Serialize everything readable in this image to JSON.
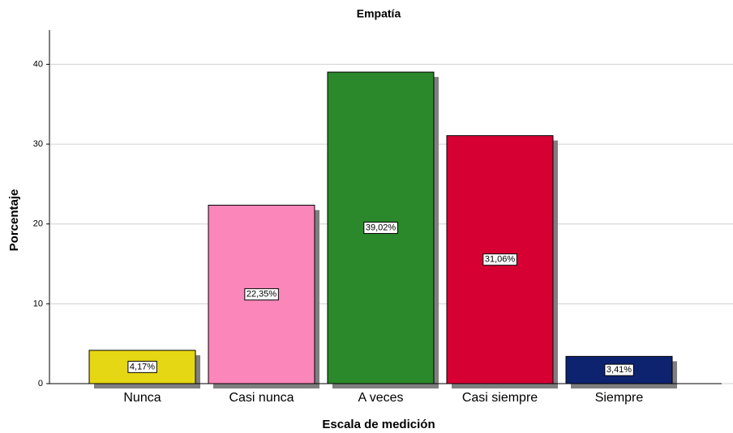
{
  "chart_data": {
    "type": "bar",
    "title": "Empatía",
    "x_label": "Escala de medición",
    "y_label": "Porcentaje",
    "categories": [
      "Nunca",
      "Casi nunca",
      "A veces",
      "Casi siempre",
      "Siempre"
    ],
    "values": [
      4.17,
      22.35,
      39.02,
      31.06,
      3.41
    ],
    "value_labels": [
      "4,17%",
      "22,35%",
      "39,02%",
      "31,06%",
      "3,41%"
    ],
    "colors": [
      "#e5d713",
      "#fb86ba",
      "#2b882b",
      "#d70033",
      "#0e2370"
    ],
    "ylim": [
      0,
      44.3
    ],
    "yticks": [
      0,
      10,
      20,
      30,
      40
    ],
    "grid": true
  }
}
